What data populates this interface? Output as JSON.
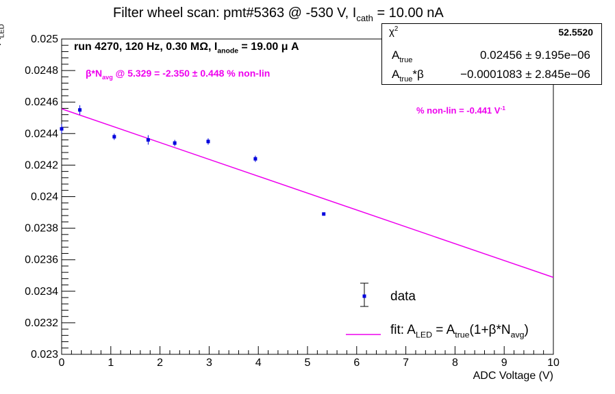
{
  "title": {
    "prefix": "Filter wheel scan: pmt#5363 @  -530 V, I",
    "sub": "cath",
    "suffix": " = 10.00 nA"
  },
  "ylabel": {
    "main": "A",
    "sub": "LED"
  },
  "xlabel": "ADC Voltage (V)",
  "annotations": {
    "run": {
      "prefix": "run 4270, 120 Hz, 0.30 MΩ, I",
      "sub": "anode",
      "suffix": " = 19.00 μ A"
    },
    "beta": {
      "prefix": "β*N",
      "sub": "avg",
      "suffix": " @ 5.329 = -2.350 ± 0.448 % non-lin"
    },
    "nonlin": {
      "prefix": "% non-lin = -0.441 V",
      "sup": "-1"
    }
  },
  "stats": {
    "chi2_label": "χ",
    "chi2_sup": "2",
    "chi2_value": "52.5520",
    "a_true_label": "A",
    "a_true_sub": "true",
    "a_true_value": "0.02456 ± 9.195e−06",
    "a_beta_label": "A",
    "a_beta_sub": "true",
    "a_beta_suffix": "*β",
    "a_beta_value": "−0.0001083 ± 2.845e−06"
  },
  "legend": {
    "data_label": "data",
    "fit_prefix": "fit: A",
    "fit_sub1": "LED",
    "fit_mid": " = A",
    "fit_sub2": "true",
    "fit_after": "(1+β*N",
    "fit_sub3": "avg",
    "fit_end": ")"
  },
  "colors": {
    "data": "#0000dd",
    "fit": "#ee00ee",
    "axis": "#000000",
    "text_accent": "#ee00ee"
  },
  "chart_data": {
    "type": "scatter",
    "xlim": [
      0,
      10
    ],
    "ylim": [
      0.023,
      0.025
    ],
    "x_ticks": [
      0,
      1,
      2,
      3,
      4,
      5,
      6,
      7,
      8,
      9,
      10
    ],
    "x_tick_labels": [
      "0",
      "1",
      "2",
      "3",
      "4",
      "5",
      "6",
      "7",
      "8",
      "9",
      "10"
    ],
    "y_ticks": [
      0.023,
      0.0232,
      0.0234,
      0.0236,
      0.0238,
      0.024,
      0.0242,
      0.0244,
      0.0246,
      0.0248,
      0.025
    ],
    "y_tick_labels": [
      "0.023",
      "0.0232",
      "0.0234",
      "0.0236",
      "0.0238",
      "0.024",
      "0.0242",
      "0.0244",
      "0.0246",
      "0.0248",
      "0.025"
    ],
    "series": [
      {
        "name": "data",
        "points": [
          {
            "x": 0.0,
            "y": 0.02443,
            "err": 3e-05
          },
          {
            "x": 0.37,
            "y": 0.02455,
            "err": 3e-05
          },
          {
            "x": 1.07,
            "y": 0.02438,
            "err": 2e-05
          },
          {
            "x": 1.76,
            "y": 0.02436,
            "err": 3e-05
          },
          {
            "x": 2.3,
            "y": 0.02434,
            "err": 2e-05
          },
          {
            "x": 2.98,
            "y": 0.02435,
            "err": 2e-05
          },
          {
            "x": 3.94,
            "y": 0.02424,
            "err": 2e-05
          },
          {
            "x": 5.33,
            "y": 0.02389,
            "err": 1e-05
          }
        ]
      },
      {
        "name": "fit",
        "line": {
          "x": [
            0,
            10
          ],
          "y": [
            0.024557,
            0.023488
          ]
        }
      }
    ]
  }
}
